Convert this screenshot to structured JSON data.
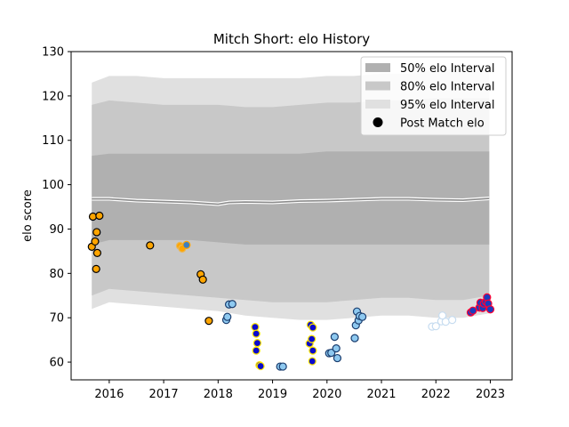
{
  "chart_data": {
    "type": "scatter",
    "title": "Mitch Short: elo History",
    "xlabel": "",
    "ylabel": "elo score",
    "xlim": [
      2015.3,
      2023.4
    ],
    "ylim": [
      56,
      130
    ],
    "x_ticks": [
      2016,
      2017,
      2018,
      2019,
      2020,
      2021,
      2022,
      2023
    ],
    "y_ticks": [
      60,
      70,
      80,
      90,
      100,
      110,
      120,
      130
    ],
    "grid": false,
    "legend_position": "top-right",
    "legend": [
      {
        "label": "50% elo Interval",
        "kind": "band",
        "color": "#b0b0b0"
      },
      {
        "label": "80% elo Interval",
        "kind": "band",
        "color": "#c8c8c8"
      },
      {
        "label": "95% elo Interval",
        "kind": "band",
        "color": "#e0e0e0"
      },
      {
        "label": "Post Match elo",
        "kind": "marker",
        "color": "#000000"
      }
    ],
    "bands": [
      {
        "name": "95% elo Interval",
        "color": "#e0e0e0",
        "x": [
          2015.68,
          2016.0,
          2016.5,
          2017.0,
          2017.5,
          2018.0,
          2018.5,
          2019.0,
          2019.5,
          2020.0,
          2020.5,
          2021.0,
          2021.5,
          2022.0,
          2022.5,
          2022.98
        ],
        "upper": [
          123,
          124.5,
          124.5,
          124,
          124,
          124,
          124,
          124,
          124,
          124.5,
          124.5,
          125,
          125,
          126,
          126,
          126
        ],
        "lower": [
          72,
          73.5,
          73,
          72.5,
          72,
          71.5,
          70.5,
          70,
          69.5,
          69.5,
          70,
          70.5,
          70.5,
          70,
          70,
          71
        ]
      },
      {
        "name": "80% elo Interval",
        "color": "#c8c8c8",
        "x": [
          2015.68,
          2016.0,
          2016.5,
          2017.0,
          2017.5,
          2018.0,
          2018.5,
          2019.0,
          2019.5,
          2020.0,
          2020.5,
          2021.0,
          2021.5,
          2022.0,
          2022.5,
          2022.98
        ],
        "upper": [
          118,
          119,
          118.5,
          118,
          118,
          118,
          117.5,
          117.5,
          118,
          118.5,
          118.5,
          119,
          119,
          119.5,
          119.5,
          119.5
        ],
        "lower": [
          75,
          76.5,
          76,
          75.5,
          75,
          74.5,
          74,
          73.5,
          73.5,
          73.5,
          74,
          74.5,
          74.5,
          74,
          74,
          75
        ]
      },
      {
        "name": "50% elo Interval",
        "color": "#b0b0b0",
        "x": [
          2015.68,
          2016.0,
          2016.5,
          2017.0,
          2017.5,
          2018.0,
          2018.5,
          2019.0,
          2019.5,
          2020.0,
          2020.5,
          2021.0,
          2021.5,
          2022.0,
          2022.5,
          2022.98
        ],
        "upper": [
          106.5,
          107,
          107,
          107,
          107,
          107,
          107,
          107,
          107,
          107.5,
          107.5,
          107.5,
          107.5,
          107.5,
          107.5,
          107.5
        ],
        "lower": [
          86.5,
          87.5,
          87.5,
          87.5,
          87.5,
          87,
          86.5,
          86.5,
          86.5,
          86.5,
          86.5,
          86.5,
          86.5,
          86.5,
          86.5,
          86.5
        ]
      }
    ],
    "mean_line": {
      "x": [
        2015.68,
        2016.0,
        2016.5,
        2017.0,
        2017.5,
        2018.0,
        2018.2,
        2018.5,
        2019.0,
        2019.5,
        2020.0,
        2020.5,
        2021.0,
        2021.5,
        2022.0,
        2022.5,
        2022.98
      ],
      "y": [
        96.8,
        96.8,
        96.4,
        96.2,
        96.0,
        95.6,
        96.0,
        96.1,
        96.0,
        96.3,
        96.4,
        96.6,
        96.8,
        96.8,
        96.6,
        96.5,
        96.9
      ]
    },
    "series": [
      {
        "fill": "#ffa500",
        "edge": "#000000",
        "points": [
          {
            "x": 2015.68,
            "y": 86
          },
          {
            "x": 2015.7,
            "y": 92.8
          },
          {
            "x": 2015.74,
            "y": 87.2
          },
          {
            "x": 2015.76,
            "y": 81
          },
          {
            "x": 2015.77,
            "y": 89.3
          },
          {
            "x": 2015.78,
            "y": 84.6
          },
          {
            "x": 2015.82,
            "y": 93
          },
          {
            "x": 2016.75,
            "y": 86.3
          },
          {
            "x": 2017.68,
            "y": 79.8
          },
          {
            "x": 2017.72,
            "y": 78.6
          },
          {
            "x": 2017.83,
            "y": 69.3
          }
        ]
      },
      {
        "fill": "#ffa500",
        "edge": "#e8b85a",
        "points": [
          {
            "x": 2017.3,
            "y": 86.2
          },
          {
            "x": 2017.34,
            "y": 85.6
          }
        ]
      },
      {
        "fill": "#3f7fbf",
        "edge": "#ffa500",
        "points": [
          {
            "x": 2017.42,
            "y": 86.4
          }
        ]
      },
      {
        "fill": "#8ec9f0",
        "edge": "#1a3d6e",
        "points": [
          {
            "x": 2018.15,
            "y": 69.5
          },
          {
            "x": 2018.17,
            "y": 70.2
          },
          {
            "x": 2018.2,
            "y": 73
          },
          {
            "x": 2018.26,
            "y": 73.1
          },
          {
            "x": 2019.14,
            "y": 59
          },
          {
            "x": 2019.19,
            "y": 59
          },
          {
            "x": 2020.04,
            "y": 62
          },
          {
            "x": 2020.08,
            "y": 62.1
          },
          {
            "x": 2020.14,
            "y": 65.7
          },
          {
            "x": 2020.17,
            "y": 63.1
          },
          {
            "x": 2020.19,
            "y": 60.9
          },
          {
            "x": 2020.51,
            "y": 65.4
          },
          {
            "x": 2020.53,
            "y": 68.3
          },
          {
            "x": 2020.55,
            "y": 71.4
          },
          {
            "x": 2020.58,
            "y": 69.4
          },
          {
            "x": 2020.6,
            "y": 70.4
          },
          {
            "x": 2020.65,
            "y": 70.2
          }
        ]
      },
      {
        "fill": "#0a0acd",
        "edge": "#ffe600",
        "points": [
          {
            "x": 2018.68,
            "y": 67.9
          },
          {
            "x": 2018.7,
            "y": 66.4
          },
          {
            "x": 2018.72,
            "y": 64.3
          },
          {
            "x": 2018.7,
            "y": 62.6
          },
          {
            "x": 2018.76,
            "y": 59.3
          },
          {
            "x": 2018.78,
            "y": 59.1
          },
          {
            "x": 2019.68,
            "y": 64.2
          },
          {
            "x": 2019.7,
            "y": 68.4
          },
          {
            "x": 2019.72,
            "y": 65.2
          },
          {
            "x": 2019.74,
            "y": 67.8
          },
          {
            "x": 2019.74,
            "y": 62.6
          },
          {
            "x": 2019.73,
            "y": 60.2
          }
        ]
      },
      {
        "fill": "#ffffff",
        "edge": "#c6dcf0",
        "points": [
          {
            "x": 2021.93,
            "y": 68
          },
          {
            "x": 2022.0,
            "y": 68.1
          },
          {
            "x": 2022.1,
            "y": 69.2
          },
          {
            "x": 2022.12,
            "y": 70.5
          },
          {
            "x": 2022.18,
            "y": 69.1
          },
          {
            "x": 2022.3,
            "y": 69.5
          }
        ]
      },
      {
        "fill": "#1a3dbf",
        "edge": "#ff0033",
        "points": [
          {
            "x": 2022.64,
            "y": 71.2
          },
          {
            "x": 2022.68,
            "y": 71.6
          },
          {
            "x": 2022.8,
            "y": 72.3
          },
          {
            "x": 2022.82,
            "y": 73.4
          },
          {
            "x": 2022.86,
            "y": 72.2
          },
          {
            "x": 2022.88,
            "y": 73.2
          },
          {
            "x": 2022.92,
            "y": 73.6
          },
          {
            "x": 2022.94,
            "y": 74.6
          },
          {
            "x": 2022.96,
            "y": 73.2
          },
          {
            "x": 2023.0,
            "y": 71.9
          }
        ]
      }
    ]
  }
}
